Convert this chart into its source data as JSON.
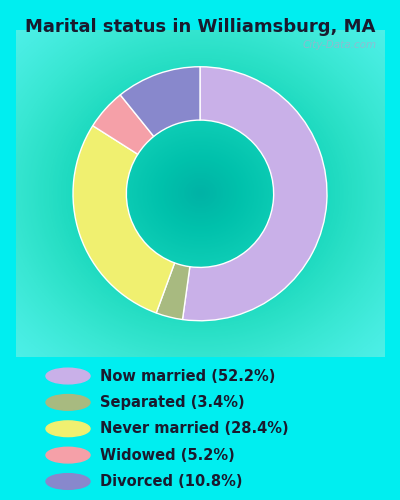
{
  "title": "Marital status in Williamsburg, MA",
  "slices": [
    52.2,
    3.4,
    28.4,
    5.2,
    10.8
  ],
  "labels": [
    "Now married (52.2%)",
    "Separated (3.4%)",
    "Never married (28.4%)",
    "Widowed (5.2%)",
    "Divorced (10.8%)"
  ],
  "colors": [
    "#c9b0e8",
    "#a8ba80",
    "#f0f070",
    "#f5a0a8",
    "#8888cc"
  ],
  "bg_cyan": "#00eef0",
  "chart_bg_outer": "#e8f5e8",
  "chart_bg_inner": "#f5fff5",
  "title_fontsize": 13,
  "legend_fontsize": 10.5,
  "start_angle": 90,
  "watermark": "City-Data.com"
}
